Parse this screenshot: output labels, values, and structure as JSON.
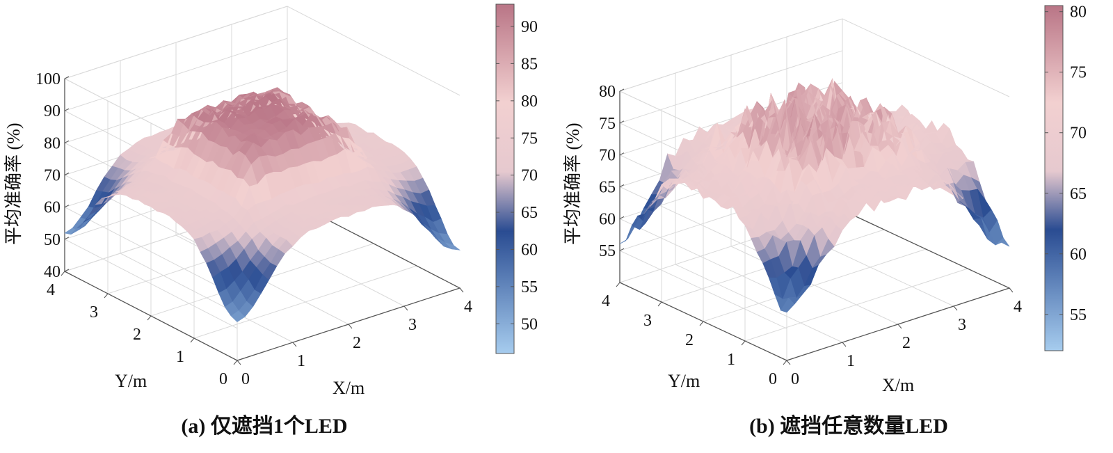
{
  "colors": {
    "low_light": "#a6ccee",
    "low": "#2a4c92",
    "mid": "#e6c9cf",
    "high": "#f2d0d0",
    "top": "#b97586"
  },
  "chart_data": [
    {
      "type": "surface",
      "caption": "(a) 仅遮挡1个LED",
      "xlabel": "X/m",
      "ylabel": "Y/m",
      "zlabel": "平均准确率 (%)",
      "xlim": [
        0,
        4
      ],
      "ylim": [
        0,
        4
      ],
      "zlim": [
        40,
        100
      ],
      "xticks": [
        "0",
        "1",
        "2",
        "3",
        "4"
      ],
      "yticks": [
        "0",
        "1",
        "2",
        "3",
        "4"
      ],
      "zticks": [
        "40",
        "50",
        "60",
        "70",
        "80",
        "90",
        "100"
      ],
      "colorbar": {
        "min": 46,
        "max": 93,
        "ticks": [
          "50",
          "55",
          "60",
          "65",
          "70",
          "75",
          "80",
          "85",
          "90"
        ]
      },
      "surface": {
        "center_plateau": 92,
        "outer_plateau": 74,
        "corner_low": 52,
        "noise": 1.2
      }
    },
    {
      "type": "surface",
      "caption": "(b) 遮挡任意数量LED",
      "xlabel": "X/m",
      "ylabel": "Y/m",
      "zlabel": "平均准确率 (%)",
      "xlim": [
        0,
        4
      ],
      "ylim": [
        0,
        4
      ],
      "zlim": [
        50,
        80
      ],
      "xticks": [
        "0",
        "1",
        "2",
        "3",
        "4"
      ],
      "yticks": [
        "0",
        "1",
        "2",
        "3",
        "4"
      ],
      "zticks": [
        "55",
        "60",
        "65",
        "70",
        "75",
        "80"
      ],
      "colorbar": {
        "min": 52,
        "max": 80.5,
        "ticks": [
          "55",
          "60",
          "65",
          "70",
          "75",
          "80"
        ]
      },
      "surface": {
        "center_plateau": 76,
        "outer_plateau": 70,
        "corner_low": 57,
        "noise": 3.0
      }
    }
  ]
}
